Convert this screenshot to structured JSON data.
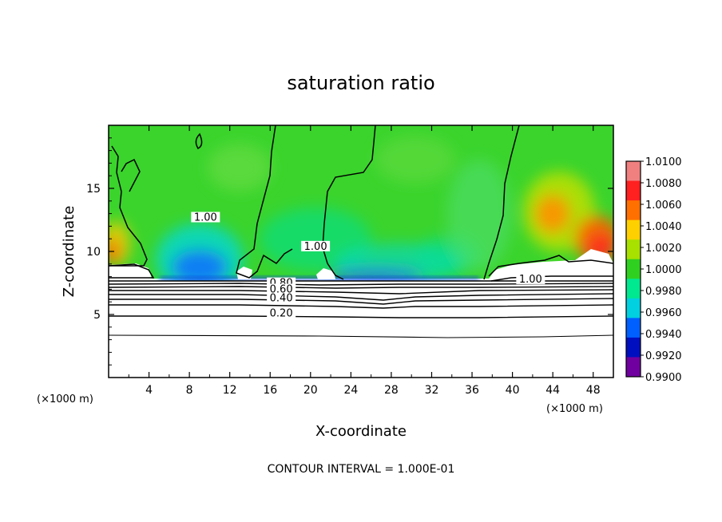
{
  "chart_data": {
    "type": "heatmap",
    "title": "saturation ratio",
    "xlabel": "X-coordinate",
    "ylabel": "Z-coordinate",
    "x_unit_left": "(×1000 m)",
    "x_unit_right": "(×1000 m)",
    "xlim": [
      0,
      50
    ],
    "ylim": [
      0,
      20
    ],
    "x_ticks": [
      4,
      8,
      12,
      16,
      20,
      24,
      28,
      32,
      36,
      40,
      44,
      48
    ],
    "x_tick_labels": [
      "4",
      "8",
      "12",
      "16",
      "20",
      "24",
      "28",
      "32",
      "36",
      "40",
      "44",
      "48"
    ],
    "y_ticks": [
      5,
      10,
      15
    ],
    "y_tick_labels": [
      "5",
      "10",
      "15"
    ],
    "colorbar": {
      "min": 0.99,
      "max": 1.01,
      "labels": [
        "1.0100",
        "1.0080",
        "1.0060",
        "1.0040",
        "1.0020",
        "1.0000",
        "0.9980",
        "0.9960",
        "0.9940",
        "0.9920",
        "0.9900"
      ],
      "colors": [
        "#f08080",
        "#ff2020",
        "#ff7000",
        "#ffd000",
        "#a8e000",
        "#30d020",
        "#00e890",
        "#00d0e0",
        "#0060ff",
        "#0010c0",
        "#7000a0"
      ]
    },
    "contour_labels": [
      {
        "text": "1.00",
        "x": 9.6,
        "z": 12.5
      },
      {
        "text": "1.00",
        "x": 20.5,
        "z": 10.2
      },
      {
        "text": "1.00",
        "x": 41.8,
        "z": 7.6
      },
      {
        "text": "0.80",
        "x": 17.1,
        "z": 7.3
      },
      {
        "text": "0.60",
        "x": 17.1,
        "z": 6.8
      },
      {
        "text": "0.40",
        "x": 17.1,
        "z": 6.1
      },
      {
        "text": "0.20",
        "x": 17.1,
        "z": 4.9
      }
    ],
    "contour_interval_label": "CONTOUR INTERVAL = 1.000E-01"
  }
}
